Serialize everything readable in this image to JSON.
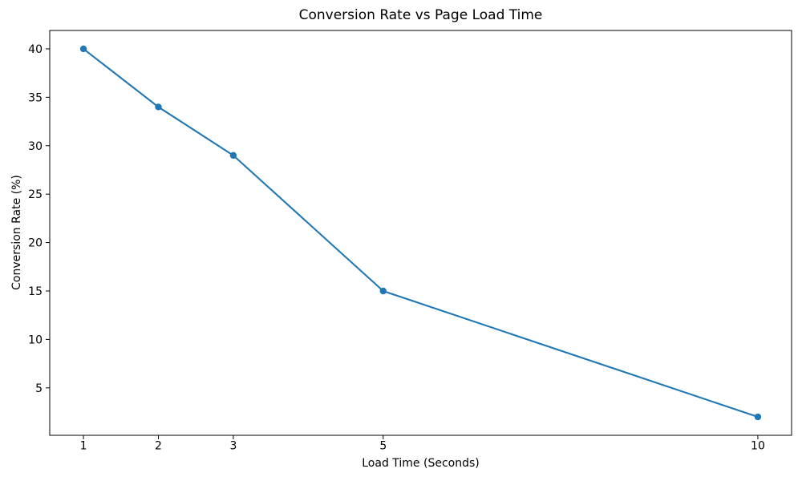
{
  "figure": {
    "background_color": "#ffffff"
  },
  "chart_data": {
    "type": "line",
    "title": "Conversion Rate vs Page Load Time",
    "xlabel": "Load Time (Seconds)",
    "ylabel": "Conversion Rate (%)",
    "x": [
      1,
      2,
      3,
      5,
      10
    ],
    "y": [
      40,
      34,
      29,
      15,
      2
    ],
    "xticks": [
      1,
      2,
      3,
      5,
      10
    ],
    "yticks": [
      5,
      10,
      15,
      20,
      25,
      30,
      35,
      40
    ],
    "xlim": [
      0.55,
      10.45
    ],
    "ylim": [
      0.1,
      41.9
    ],
    "grid": false,
    "legend": false,
    "marker": "circle",
    "line_color": "#1f77b4",
    "marker_color": "#1f77b4",
    "text_color": "#000000",
    "spine_color": "#000000"
  }
}
